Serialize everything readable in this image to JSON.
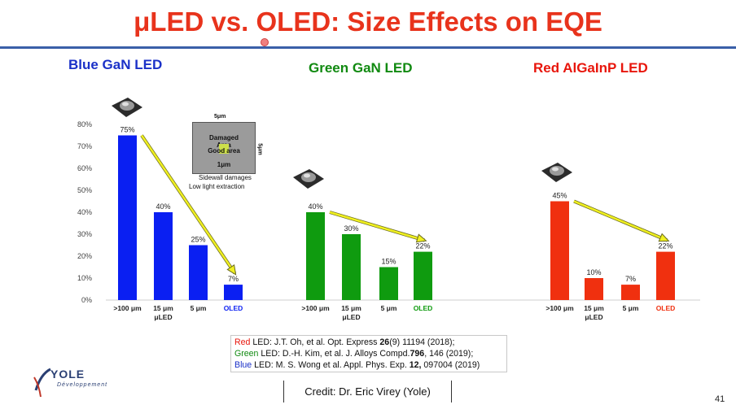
{
  "slide": {
    "title_mu": "μ",
    "title_rest": "LED vs. OLED: Size Effects on EQE",
    "page_number": "41",
    "credit": "Credit: Dr.  Eric Virey (Yole)",
    "logo": {
      "main": "YOLE",
      "sub": "Développement"
    }
  },
  "sections": [
    {
      "label": "Blue GaN LED",
      "color": "#1b31c8"
    },
    {
      "label": "Green GaN LED",
      "color": "#118a11"
    },
    {
      "label": "Red AlGaInP LED",
      "color": "#e8160c"
    }
  ],
  "inset": {
    "top_dim": "5μm",
    "side_dim": "5μm",
    "line1": "Damaged",
    "line2": "Area",
    "core": "Good area",
    "core_dim": "1μm",
    "caption1": "Sidewall damages",
    "caption2": "Low light extraction"
  },
  "references": [
    {
      "color_word": "Red",
      "color": "#e8160c",
      "text": " LED: J.T. Oh, et al. Opt. Express ",
      "bold": "26",
      "rest": "(9) 11194 (2018);"
    },
    {
      "color_word": "Green",
      "color": "#118a11",
      "text": " LED: D.-H. Kim, et al. J. Alloys Compd.",
      "bold": "796",
      "rest": ", 146 (2019);"
    },
    {
      "color_word": "Blue",
      "color": "#1b31c8",
      "text": " LED: M. S. Wong et al. Appl. Phys. Exp. ",
      "bold": "12,",
      "rest": " 097004 (2019)"
    }
  ],
  "chart_data": {
    "type": "bar",
    "ylim": [
      0,
      80
    ],
    "yticks": [
      "0%",
      "10%",
      "20%",
      "30%",
      "40%",
      "50%",
      "60%",
      "70%",
      "80%"
    ],
    "grid": false,
    "groups": [
      {
        "name": "Blue GaN LED",
        "color": "#0a1ff2",
        "categories": [
          ">100 μm",
          "15 μm\nμLED",
          "5 μm",
          "OLED"
        ],
        "values": [
          75,
          40,
          25,
          7
        ],
        "labels": [
          "75%",
          "40%",
          "25%",
          "7%"
        ]
      },
      {
        "name": "Green GaN LED",
        "color": "#0f9b0f",
        "categories": [
          ">100 μm",
          "15 μm\nμLED",
          "5 μm",
          "OLED"
        ],
        "values": [
          40,
          30,
          15,
          22
        ],
        "labels": [
          "40%",
          "30%",
          "15%",
          "22%"
        ]
      },
      {
        "name": "Red AlGaInP LED",
        "color": "#f0300f",
        "categories": [
          ">100 μm",
          "15 μm\nμLED",
          "5 μm",
          "OLED"
        ],
        "values": [
          45,
          10,
          7,
          22
        ],
        "labels": [
          "45%",
          "10%",
          "7%",
          "22%"
        ]
      }
    ]
  }
}
